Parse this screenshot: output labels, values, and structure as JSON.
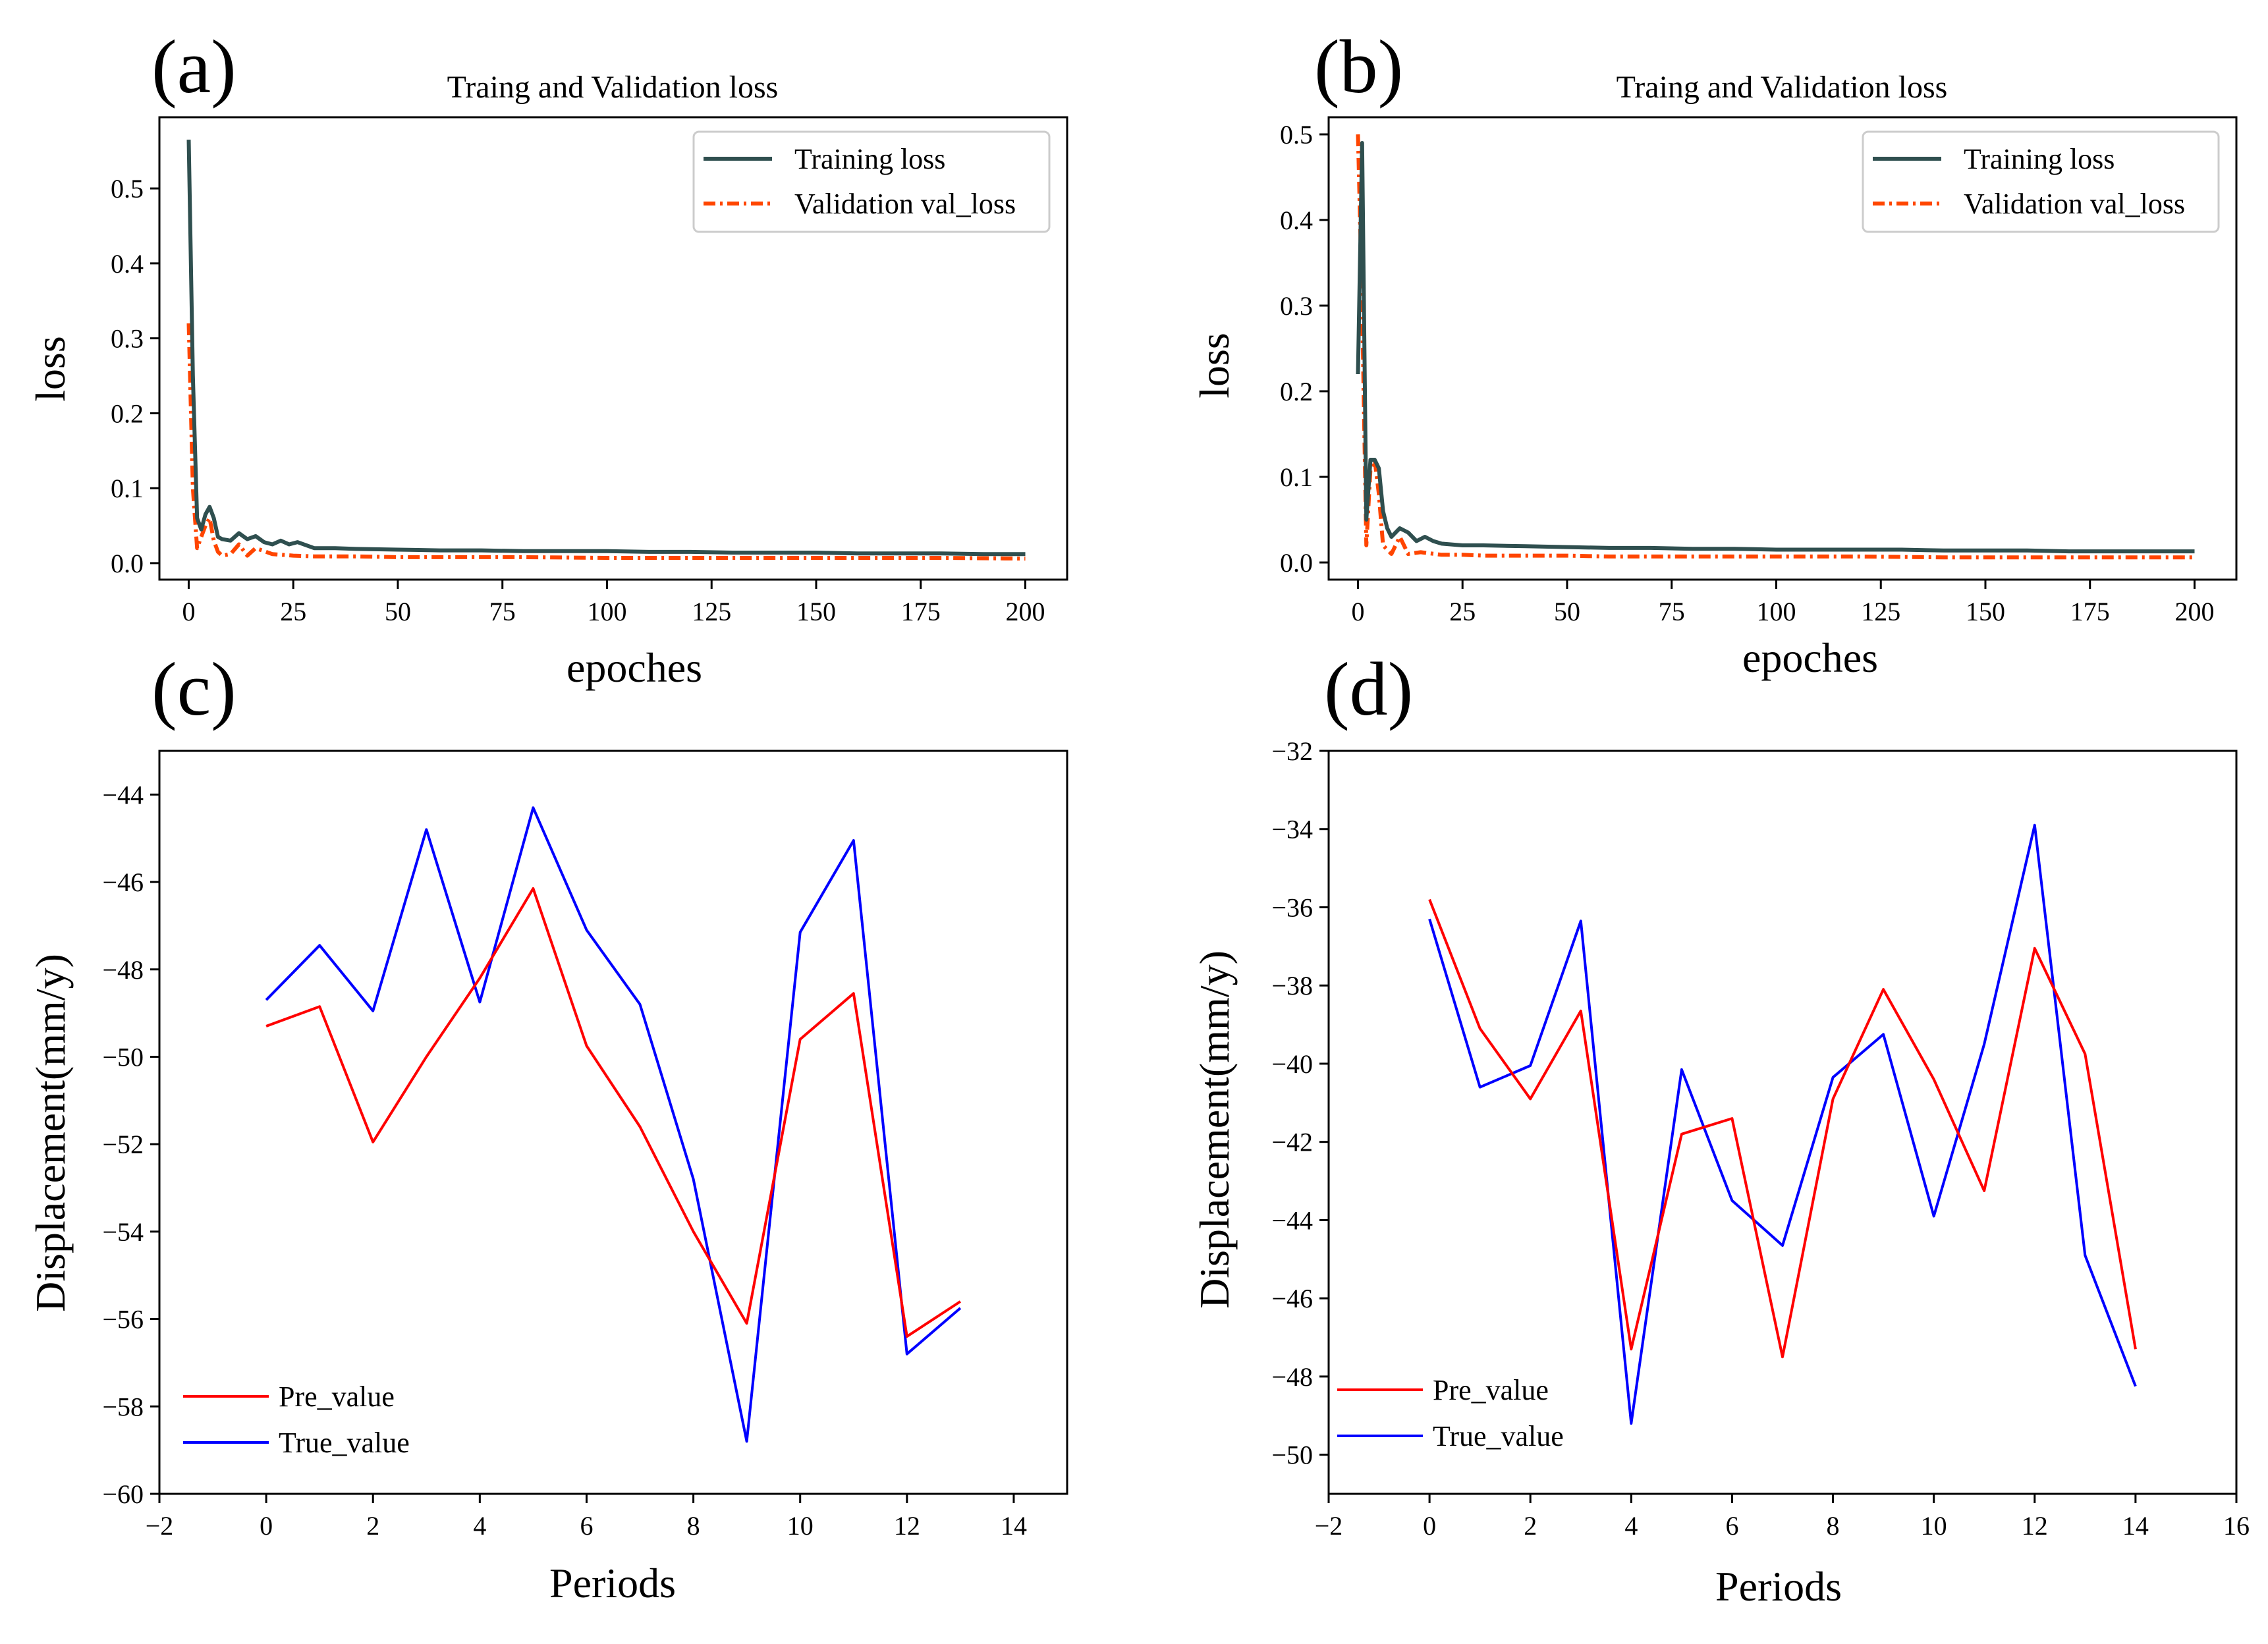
{
  "chart_data": [
    {
      "panel": "(a)",
      "type": "line",
      "title": "Traing and Validation loss",
      "xlabel": "epoches",
      "ylabel": "loss",
      "xlim": [
        -7,
        210
      ],
      "ylim": [
        -0.022,
        0.595
      ],
      "xticks": [
        0,
        25,
        50,
        75,
        100,
        125,
        150,
        175,
        200
      ],
      "yticks": [
        0.0,
        0.1,
        0.2,
        0.3,
        0.4,
        0.5
      ],
      "ytick_labels": [
        "0.0",
        "0.1",
        "0.2",
        "0.3",
        "0.4",
        "0.5"
      ],
      "legend_position": "upper-right",
      "series": [
        {
          "name": "Training loss",
          "color": "#2f4f4f",
          "style": "solid",
          "x": [
            0,
            1,
            2,
            3,
            4,
            5,
            6,
            7,
            8,
            10,
            12,
            14,
            16,
            18,
            20,
            22,
            24,
            26,
            30,
            35,
            40,
            50,
            60,
            70,
            80,
            90,
            100,
            110,
            120,
            130,
            140,
            150,
            160,
            170,
            180,
            190,
            200
          ],
          "values": [
            0.565,
            0.25,
            0.06,
            0.045,
            0.065,
            0.075,
            0.06,
            0.035,
            0.032,
            0.03,
            0.04,
            0.032,
            0.036,
            0.028,
            0.025,
            0.03,
            0.025,
            0.028,
            0.02,
            0.02,
            0.019,
            0.018,
            0.017,
            0.017,
            0.016,
            0.016,
            0.016,
            0.015,
            0.015,
            0.014,
            0.014,
            0.014,
            0.013,
            0.013,
            0.013,
            0.012,
            0.012
          ]
        },
        {
          "name": "Validation val_loss",
          "color": "#ff4500",
          "style": "dashdot",
          "x": [
            0,
            1,
            2,
            3,
            4,
            5,
            6,
            7,
            8,
            10,
            12,
            14,
            16,
            20,
            25,
            30,
            40,
            50,
            60,
            80,
            100,
            120,
            140,
            160,
            180,
            200
          ],
          "values": [
            0.32,
            0.1,
            0.02,
            0.035,
            0.05,
            0.06,
            0.03,
            0.015,
            0.01,
            0.012,
            0.025,
            0.01,
            0.02,
            0.012,
            0.01,
            0.009,
            0.009,
            0.008,
            0.008,
            0.008,
            0.007,
            0.007,
            0.007,
            0.007,
            0.007,
            0.006
          ]
        }
      ]
    },
    {
      "panel": "(b)",
      "type": "line",
      "title": "Traing and Validation loss",
      "xlabel": "epoches",
      "ylabel": "loss",
      "xlim": [
        -7,
        210
      ],
      "ylim": [
        -0.02,
        0.52
      ],
      "xticks": [
        0,
        25,
        50,
        75,
        100,
        125,
        150,
        175,
        200
      ],
      "yticks": [
        0.0,
        0.1,
        0.2,
        0.3,
        0.4,
        0.5
      ],
      "ytick_labels": [
        "0.0",
        "0.1",
        "0.2",
        "0.3",
        "0.4",
        "0.5"
      ],
      "legend_position": "upper-right",
      "series": [
        {
          "name": "Training loss",
          "color": "#2f4f4f",
          "style": "solid",
          "x": [
            0,
            1,
            2,
            3,
            4,
            5,
            6,
            7,
            8,
            10,
            12,
            14,
            16,
            18,
            20,
            25,
            30,
            40,
            50,
            60,
            70,
            80,
            90,
            100,
            110,
            120,
            130,
            140,
            150,
            160,
            170,
            180,
            190,
            200
          ],
          "values": [
            0.22,
            0.49,
            0.05,
            0.12,
            0.12,
            0.11,
            0.06,
            0.04,
            0.03,
            0.04,
            0.035,
            0.025,
            0.03,
            0.025,
            0.022,
            0.02,
            0.02,
            0.019,
            0.018,
            0.017,
            0.017,
            0.016,
            0.016,
            0.015,
            0.015,
            0.015,
            0.015,
            0.014,
            0.014,
            0.014,
            0.013,
            0.013,
            0.013,
            0.013
          ]
        },
        {
          "name": "Validation val_loss",
          "color": "#ff4500",
          "style": "dashdot",
          "x": [
            0,
            1,
            2,
            3,
            4,
            5,
            6,
            7,
            8,
            10,
            12,
            15,
            20,
            25,
            30,
            40,
            50,
            60,
            80,
            100,
            120,
            140,
            160,
            180,
            200
          ],
          "values": [
            0.5,
            0.3,
            0.02,
            0.11,
            0.12,
            0.08,
            0.02,
            0.015,
            0.01,
            0.03,
            0.01,
            0.012,
            0.009,
            0.009,
            0.008,
            0.008,
            0.008,
            0.007,
            0.007,
            0.007,
            0.007,
            0.006,
            0.006,
            0.006,
            0.006
          ]
        }
      ]
    },
    {
      "panel": "(c)",
      "type": "line",
      "title": "",
      "xlabel": "Periods",
      "ylabel": "Displacement(mm/y)",
      "xlim": [
        -2,
        15
      ],
      "ylim": [
        -60,
        -43
      ],
      "xticks": [
        -2,
        0,
        2,
        4,
        6,
        8,
        10,
        12,
        14
      ],
      "xtick_labels": [
        "−2",
        "0",
        "2",
        "4",
        "6",
        "8",
        "10",
        "12",
        "14"
      ],
      "yticks": [
        -60,
        -58,
        -56,
        -54,
        -52,
        -50,
        -48,
        -46,
        -44
      ],
      "ytick_labels": [
        "−60",
        "−58",
        "−56",
        "−54",
        "−52",
        "−50",
        "−48",
        "−46",
        "−44"
      ],
      "legend_position": "lower-left",
      "series": [
        {
          "name": "Pre_value",
          "color": "#ff0000",
          "x": [
            0,
            1,
            2,
            3,
            4,
            5,
            6,
            7,
            8,
            9,
            10,
            11,
            12,
            13
          ],
          "values": [
            -49.3,
            -48.85,
            -51.95,
            -50.0,
            -48.2,
            -46.15,
            -49.75,
            -51.6,
            -54.0,
            -56.1,
            -49.6,
            -48.55,
            -56.4,
            -55.6
          ]
        },
        {
          "name": "True_value",
          "color": "#0000ff",
          "x": [
            0,
            1,
            2,
            3,
            4,
            5,
            6,
            7,
            8,
            9,
            10,
            11,
            12,
            13
          ],
          "values": [
            -48.7,
            -47.45,
            -48.95,
            -44.8,
            -48.75,
            -44.3,
            -47.1,
            -48.8,
            -52.8,
            -58.8,
            -47.15,
            -45.05,
            -56.8,
            -55.75
          ]
        }
      ]
    },
    {
      "panel": "(d)",
      "type": "line",
      "title": "",
      "xlabel": "Periods",
      "ylabel": "Displacement(mm/y)",
      "xlim": [
        -2,
        16
      ],
      "ylim": [
        -51,
        -32
      ],
      "xticks": [
        -2,
        0,
        2,
        4,
        6,
        8,
        10,
        12,
        14,
        16
      ],
      "xtick_labels": [
        "−2",
        "0",
        "2",
        "4",
        "6",
        "8",
        "10",
        "12",
        "14",
        "16"
      ],
      "yticks": [
        -50,
        -48,
        -46,
        -44,
        -42,
        -40,
        -38,
        -36,
        -34,
        -32
      ],
      "ytick_labels": [
        "−50",
        "−48",
        "−46",
        "−44",
        "−42",
        "−40",
        "−38",
        "−36",
        "−34",
        "−32"
      ],
      "legend_position": "lower-left",
      "series": [
        {
          "name": "Pre_value",
          "color": "#ff0000",
          "x": [
            0,
            1,
            2,
            3,
            4,
            5,
            6,
            7,
            8,
            9,
            10,
            11,
            12,
            13,
            14
          ],
          "values": [
            -35.8,
            -39.1,
            -40.9,
            -38.65,
            -47.3,
            -41.8,
            -41.4,
            -47.5,
            -40.9,
            -38.1,
            -40.4,
            -43.25,
            -37.05,
            -39.75,
            -47.3
          ]
        },
        {
          "name": "True_value",
          "color": "#0000ff",
          "x": [
            0,
            1,
            2,
            3,
            4,
            5,
            6,
            7,
            8,
            9,
            10,
            11,
            12,
            13,
            14
          ],
          "values": [
            -36.3,
            -40.6,
            -40.05,
            -36.35,
            -49.2,
            -40.15,
            -43.5,
            -44.65,
            -40.35,
            -39.25,
            -43.9,
            -39.5,
            -33.9,
            -44.9,
            -48.25
          ]
        }
      ]
    }
  ]
}
